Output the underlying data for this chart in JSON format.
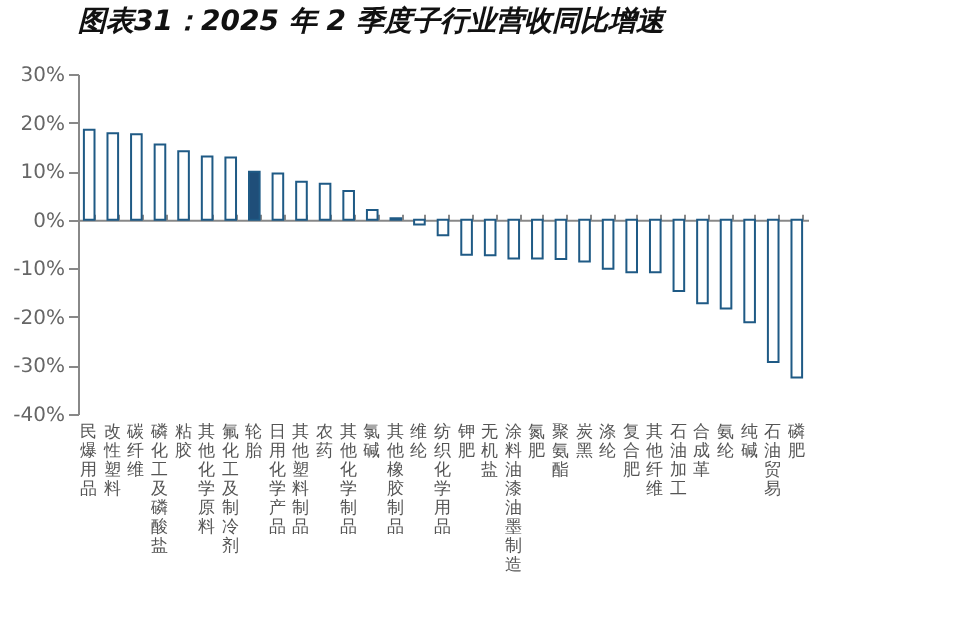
{
  "chart_data": {
    "type": "bar",
    "title": "图表31：2025 年 2 季度子行业营收同比增速",
    "categories": [
      "民爆用品",
      "改性塑料",
      "碳纤维",
      "磷化工及磷酸盐",
      "粘胶",
      "其他化学原料",
      "氟化工及制冷剂",
      "轮胎",
      "日用化学产品",
      "其他塑料制品",
      "农药",
      "其他化学制品",
      "氯碱",
      "其他橡胶制品",
      "维纶",
      "纺织化学用品",
      "钾肥",
      "无机盐",
      "涂料油漆油墨制造",
      "氮肥",
      "聚氨酯",
      "炭黑",
      "涤纶",
      "复合肥",
      "其他纤维",
      "石油加工",
      "合成革",
      "氨纶",
      "纯碱",
      "石油贸易",
      "磷肥"
    ],
    "values": [
      18.5,
      17.8,
      17.6,
      15.5,
      14.1,
      13.0,
      12.8,
      9.9,
      9.5,
      7.8,
      7.4,
      5.9,
      2.0,
      0.3,
      -1.0,
      -3.2,
      -7.2,
      -7.3,
      -8.0,
      -8.0,
      -8.1,
      -8.6,
      -10.1,
      -10.8,
      -10.8,
      -14.7,
      -17.2,
      -18.3,
      -21.1,
      -29.3,
      -32.5
    ],
    "colors": [
      "#ffffff",
      "#ffffff",
      "#ffffff",
      "#ffffff",
      "#ffffff",
      "#ffffff",
      "#ffffff",
      "#1f4e79",
      "#ffffff",
      "#ffffff",
      "#ffffff",
      "#ffffff",
      "#ffffff",
      "#ffffff",
      "#ffffff",
      "#ffffff",
      "#ffffff",
      "#ffffff",
      "#ffffff",
      "#ffffff",
      "#ffffff",
      "#ffffff",
      "#ffffff",
      "#ffffff",
      "#ffffff",
      "#ffffff",
      "#ffffff",
      "#ffffff",
      "#ffffff",
      "#ffffff",
      "#ffffff"
    ],
    "ylim": [
      -40,
      30
    ],
    "yticks": [
      {
        "value": -40,
        "label": "-40%"
      },
      {
        "value": -30,
        "label": "-30%"
      },
      {
        "value": -20,
        "label": "-20%"
      },
      {
        "value": -10,
        "label": "-10%"
      },
      {
        "value": 0,
        "label": "0%"
      },
      {
        "value": 10,
        "label": "10%"
      },
      {
        "value": 20,
        "label": "20%"
      },
      {
        "value": 30,
        "label": "30%"
      }
    ]
  }
}
